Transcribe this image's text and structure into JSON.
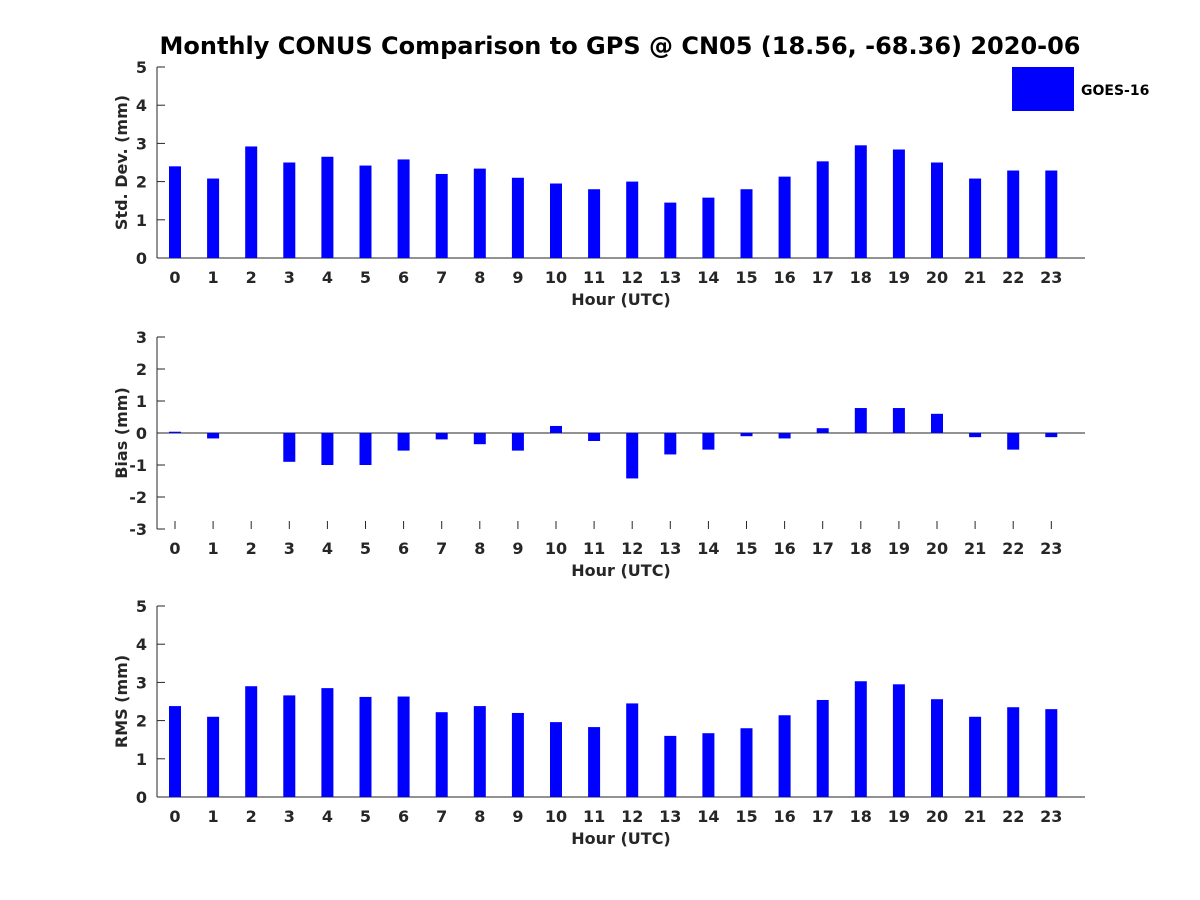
{
  "title": "Monthly CONUS Comparison to GPS @ CN05 (18.56, -68.36) 2020-06",
  "legend": {
    "label": "GOES-16",
    "color": "#0000ff",
    "placement": "top-right"
  },
  "chart_data": [
    {
      "type": "bar",
      "name": "std-dev",
      "xlabel": "Hour (UTC)",
      "ylabel": "Std. Dev. (mm)",
      "ylim": [
        0,
        5
      ],
      "yticks": [
        0,
        1,
        2,
        3,
        4,
        5
      ],
      "categories": [
        "0",
        "1",
        "2",
        "3",
        "4",
        "5",
        "6",
        "7",
        "8",
        "9",
        "10",
        "11",
        "12",
        "13",
        "14",
        "15",
        "16",
        "17",
        "18",
        "19",
        "20",
        "21",
        "22",
        "23"
      ],
      "series": [
        {
          "name": "GOES-16",
          "values": [
            2.4,
            2.08,
            2.92,
            2.5,
            2.65,
            2.42,
            2.58,
            2.2,
            2.34,
            2.1,
            1.95,
            1.8,
            2.0,
            1.45,
            1.58,
            1.8,
            2.13,
            2.53,
            2.95,
            2.84,
            2.5,
            2.08,
            2.29,
            2.29
          ]
        }
      ]
    },
    {
      "type": "bar",
      "name": "bias",
      "xlabel": "Hour (UTC)",
      "ylabel": "Bias (mm)",
      "ylim": [
        -3,
        3
      ],
      "yticks": [
        -3,
        -2,
        -1,
        0,
        1,
        2,
        3
      ],
      "categories": [
        "0",
        "1",
        "2",
        "3",
        "4",
        "5",
        "6",
        "7",
        "8",
        "9",
        "10",
        "11",
        "12",
        "13",
        "14",
        "15",
        "16",
        "17",
        "18",
        "19",
        "20",
        "21",
        "22",
        "23"
      ],
      "series": [
        {
          "name": "GOES-16",
          "values": [
            0.04,
            -0.17,
            0.0,
            -0.9,
            -1.0,
            -1.0,
            -0.55,
            -0.2,
            -0.35,
            -0.55,
            0.22,
            -0.25,
            -1.42,
            -0.67,
            -0.52,
            -0.1,
            -0.17,
            0.15,
            0.78,
            0.78,
            0.6,
            -0.13,
            -0.52,
            -0.13
          ]
        }
      ]
    },
    {
      "type": "bar",
      "name": "rms",
      "xlabel": "Hour (UTC)",
      "ylabel": "RMS (mm)",
      "ylim": [
        0,
        5
      ],
      "yticks": [
        0,
        1,
        2,
        3,
        4,
        5
      ],
      "categories": [
        "0",
        "1",
        "2",
        "3",
        "4",
        "5",
        "6",
        "7",
        "8",
        "9",
        "10",
        "11",
        "12",
        "13",
        "14",
        "15",
        "16",
        "17",
        "18",
        "19",
        "20",
        "21",
        "22",
        "23"
      ],
      "series": [
        {
          "name": "GOES-16",
          "values": [
            2.38,
            2.1,
            2.9,
            2.66,
            2.85,
            2.62,
            2.63,
            2.22,
            2.38,
            2.2,
            1.96,
            1.83,
            2.45,
            1.6,
            1.67,
            1.8,
            2.14,
            2.54,
            3.03,
            2.95,
            2.56,
            2.1,
            2.35,
            2.3
          ]
        }
      ]
    }
  ]
}
